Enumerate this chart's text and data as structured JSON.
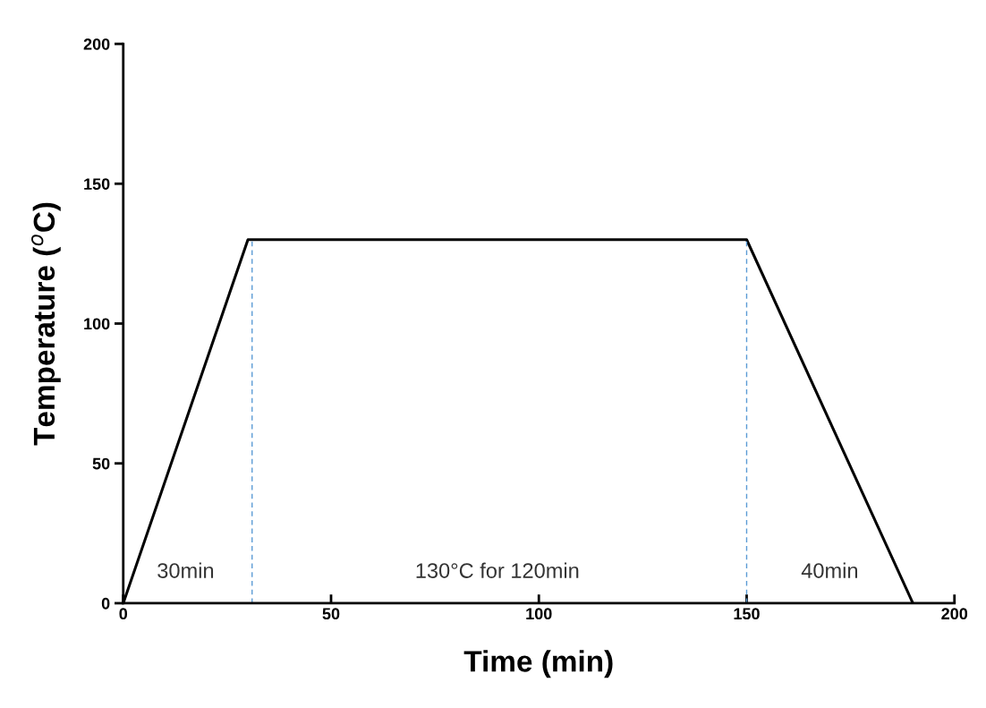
{
  "chart_data": {
    "type": "line",
    "xlabel": "Time (min)",
    "ylabel": "Temperature ($^{o}$C)",
    "x": [
      0,
      30,
      150,
      190
    ],
    "series": [
      {
        "color": "#000000",
        "values": [
          0,
          130,
          130,
          0
        ]
      }
    ],
    "ref_lines": [
      {
        "axis": "x",
        "value": 31,
        "color": "#5b9bd5",
        "line_style": "dashed"
      },
      {
        "axis": "x",
        "value": 150,
        "color": "#5b9bd5",
        "line_style": "dashed"
      }
    ],
    "annotations": [
      "30min",
      "130°C for 120min",
      "40min"
    ],
    "xlim": [
      0,
      200
    ],
    "ylim": [
      0,
      200
    ],
    "xticks": [
      0,
      50,
      100,
      150,
      200
    ],
    "yticks": [
      0,
      50,
      100,
      150,
      200
    ],
    "grid": false,
    "legend": false,
    "marker": "none",
    "line_style": "solid"
  }
}
